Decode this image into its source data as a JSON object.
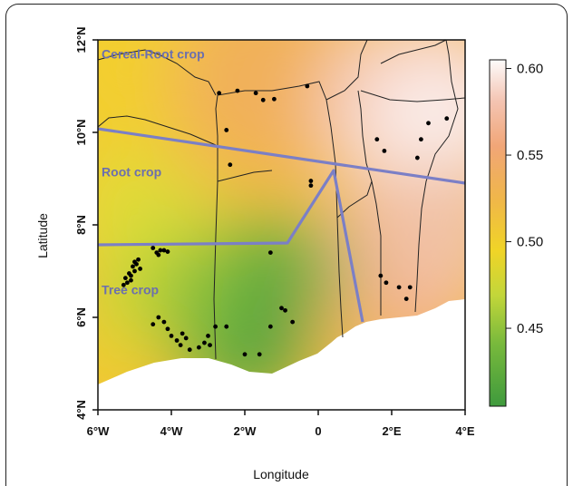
{
  "map": {
    "x_axis": {
      "title": "Longitude",
      "ticks": [
        {
          "value": -6,
          "label": "6°W"
        },
        {
          "value": -4,
          "label": "4°W"
        },
        {
          "value": -2,
          "label": "2°W"
        },
        {
          "value": 0,
          "label": "0"
        },
        {
          "value": 2,
          "label": "2°E"
        },
        {
          "value": 4,
          "label": "4°E"
        }
      ],
      "range": [
        -6,
        4
      ]
    },
    "y_axis": {
      "title": "Latitude",
      "ticks": [
        {
          "value": 4,
          "label": "4°N"
        },
        {
          "value": 6,
          "label": "6°N"
        },
        {
          "value": 8,
          "label": "8°N"
        },
        {
          "value": 10,
          "label": "10°N"
        },
        {
          "value": 12,
          "label": "12°N"
        }
      ],
      "range": [
        4,
        12
      ]
    },
    "zones": [
      {
        "label": "Cereal-Root crop",
        "lon": -5.9,
        "lat": 11.6
      },
      {
        "label": "Root crop",
        "lon": -5.9,
        "lat": 9.05
      },
      {
        "label": "Tree crop",
        "lon": -5.9,
        "lat": 6.5
      }
    ],
    "colorbar": {
      "ticks": [
        {
          "value": 0.6,
          "label": "0.60"
        },
        {
          "value": 0.55,
          "label": "0.55"
        },
        {
          "value": 0.5,
          "label": "0.50"
        },
        {
          "value": 0.45,
          "label": "0.45"
        }
      ],
      "range": [
        0.405,
        0.605
      ],
      "colors": [
        "#3f9a3d",
        "#78b93c",
        "#c2d63a",
        "#f0d427",
        "#f0b64a",
        "#f1a677",
        "#f4c4b2",
        "#fdfbfb"
      ]
    },
    "zone_boundary_color": "#7b7fc6",
    "sample_points": [
      [
        -5.3,
        6.7
      ],
      [
        -5.2,
        6.75
      ],
      [
        -5.1,
        6.8
      ],
      [
        -5.25,
        6.85
      ],
      [
        -5.15,
        6.95
      ],
      [
        -5.0,
        7.0
      ],
      [
        -5.05,
        7.1
      ],
      [
        -4.95,
        7.15
      ],
      [
        -5.0,
        7.2
      ],
      [
        -4.9,
        7.25
      ],
      [
        -4.85,
        7.05
      ],
      [
        -5.1,
        6.9
      ],
      [
        -4.5,
        7.5
      ],
      [
        -4.35,
        7.35
      ],
      [
        -4.2,
        7.45
      ],
      [
        -4.1,
        7.42
      ],
      [
        -4.4,
        7.4
      ],
      [
        -4.3,
        7.45
      ],
      [
        -4.5,
        5.85
      ],
      [
        -4.35,
        6.0
      ],
      [
        -4.2,
        5.9
      ],
      [
        -4.1,
        5.75
      ],
      [
        -4.0,
        5.6
      ],
      [
        -3.85,
        5.5
      ],
      [
        -3.75,
        5.4
      ],
      [
        -3.7,
        5.65
      ],
      [
        -3.6,
        5.55
      ],
      [
        -3.5,
        5.3
      ],
      [
        -3.25,
        5.35
      ],
      [
        -3.1,
        5.45
      ],
      [
        -3.0,
        5.6
      ],
      [
        -2.95,
        5.4
      ],
      [
        -2.8,
        5.8
      ],
      [
        -2.5,
        5.8
      ],
      [
        -2.0,
        5.2
      ],
      [
        -1.6,
        5.2
      ],
      [
        -1.3,
        5.8
      ],
      [
        -1.0,
        6.2
      ],
      [
        -0.9,
        6.15
      ],
      [
        -0.7,
        5.9
      ],
      [
        -1.3,
        7.4
      ],
      [
        -2.7,
        10.85
      ],
      [
        -2.2,
        10.9
      ],
      [
        -1.7,
        10.85
      ],
      [
        -1.5,
        10.7
      ],
      [
        -1.2,
        10.72
      ],
      [
        -0.3,
        11.0
      ],
      [
        -2.5,
        10.05
      ],
      [
        -2.4,
        9.3
      ],
      [
        -0.2,
        8.95
      ],
      [
        -0.2,
        8.85
      ],
      [
        1.6,
        9.85
      ],
      [
        1.8,
        9.6
      ],
      [
        2.7,
        9.45
      ],
      [
        2.8,
        9.85
      ],
      [
        3.0,
        10.2
      ],
      [
        3.5,
        10.3
      ],
      [
        1.7,
        6.9
      ],
      [
        1.85,
        6.75
      ],
      [
        2.2,
        6.65
      ],
      [
        2.5,
        6.65
      ],
      [
        2.4,
        6.4
      ]
    ]
  }
}
